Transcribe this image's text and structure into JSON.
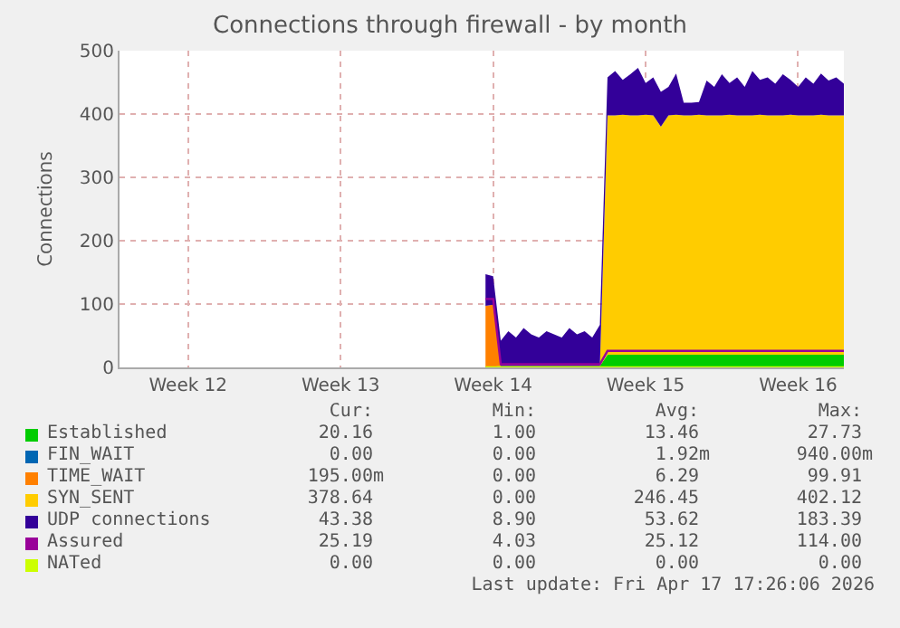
{
  "chart_data": {
    "type": "area",
    "title": "Connections through firewall - by month",
    "ylabel": "Connections",
    "categories": [
      null,
      null,
      null,
      null,
      null,
      null,
      null,
      null,
      null,
      "Week 12",
      null,
      null,
      null,
      null,
      null,
      null,
      null,
      null,
      null,
      null,
      null,
      null,
      null,
      null,
      null,
      null,
      null,
      null,
      null,
      "Week 13",
      null,
      null,
      null,
      null,
      null,
      null,
      null,
      null,
      null,
      null,
      null,
      null,
      null,
      null,
      null,
      null,
      null,
      null,
      null,
      "Week 14",
      null,
      null,
      null,
      null,
      null,
      null,
      null,
      null,
      null,
      null,
      null,
      null,
      null,
      null,
      null,
      null,
      null,
      null,
      null,
      "Week 15",
      null,
      null,
      null,
      null,
      null,
      null,
      null,
      null,
      null,
      null,
      null,
      null,
      null,
      null,
      null,
      null,
      null,
      null,
      null,
      "Week 16",
      null,
      null,
      null,
      null,
      null,
      null
    ],
    "ylim": [
      0,
      500
    ],
    "yticks": [
      0,
      100,
      200,
      300,
      400,
      500
    ],
    "stacked": true,
    "grid": true,
    "legend": "bottom",
    "series": [
      {
        "name": "Established",
        "color": "#00cc00",
        "type": "area",
        "values": [
          null,
          null,
          null,
          null,
          null,
          null,
          null,
          null,
          null,
          null,
          null,
          null,
          null,
          null,
          null,
          null,
          null,
          null,
          null,
          null,
          null,
          null,
          null,
          null,
          null,
          null,
          null,
          null,
          null,
          null,
          null,
          null,
          null,
          null,
          null,
          null,
          null,
          null,
          null,
          null,
          null,
          null,
          null,
          null,
          null,
          null,
          null,
          null,
          1,
          1,
          2,
          2,
          2,
          2,
          2,
          2,
          2,
          2,
          2,
          2,
          2,
          2,
          2,
          2,
          20,
          20,
          20,
          20,
          20,
          20,
          20,
          20,
          20,
          20,
          20,
          20,
          20,
          20,
          20,
          20,
          20,
          20,
          20,
          20,
          20,
          20,
          20,
          20,
          20,
          20,
          20,
          20,
          20,
          20,
          20,
          20
        ]
      },
      {
        "name": "FIN_WAIT",
        "color": "#0066b3",
        "type": "area",
        "values": [
          null,
          null,
          null,
          null,
          null,
          null,
          null,
          null,
          null,
          null,
          null,
          null,
          null,
          null,
          null,
          null,
          null,
          null,
          null,
          null,
          null,
          null,
          null,
          null,
          null,
          null,
          null,
          null,
          null,
          null,
          null,
          null,
          null,
          null,
          null,
          null,
          null,
          null,
          null,
          null,
          null,
          null,
          null,
          null,
          null,
          null,
          null,
          null,
          null,
          null,
          null,
          null,
          null,
          null,
          null,
          null,
          null,
          null,
          null,
          null,
          null,
          null,
          null,
          null,
          null,
          null,
          null,
          null,
          null,
          null,
          null,
          null,
          null,
          null,
          null,
          null,
          null,
          null,
          null,
          null,
          null,
          null,
          null,
          null,
          null,
          null,
          null,
          null,
          null,
          null,
          null,
          null,
          null,
          null,
          null,
          null
        ]
      },
      {
        "name": "TIME_WAIT",
        "color": "#ff8000",
        "type": "area",
        "values": [
          null,
          null,
          null,
          null,
          null,
          null,
          null,
          null,
          null,
          null,
          null,
          null,
          null,
          null,
          null,
          null,
          null,
          null,
          null,
          null,
          null,
          null,
          null,
          null,
          null,
          null,
          null,
          null,
          null,
          null,
          null,
          null,
          null,
          null,
          null,
          null,
          null,
          null,
          null,
          null,
          null,
          null,
          null,
          null,
          null,
          null,
          null,
          null,
          96,
          98,
          0,
          0,
          0,
          0,
          0,
          0,
          0,
          0,
          0,
          0,
          0,
          0,
          0,
          0,
          0,
          0,
          0,
          0,
          0,
          0,
          0,
          0,
          0,
          0,
          0,
          0,
          0,
          0,
          0,
          0,
          0,
          0,
          0,
          0,
          0,
          0,
          0,
          0,
          0,
          0,
          0,
          0,
          0,
          0,
          0,
          0
        ]
      },
      {
        "name": "SYN_SENT",
        "color": "#ffcc00",
        "type": "area",
        "values": [
          null,
          null,
          null,
          null,
          null,
          null,
          null,
          null,
          null,
          null,
          null,
          null,
          null,
          null,
          null,
          null,
          null,
          null,
          null,
          null,
          null,
          null,
          null,
          null,
          null,
          null,
          null,
          null,
          null,
          null,
          null,
          null,
          null,
          null,
          null,
          null,
          null,
          null,
          null,
          null,
          null,
          null,
          null,
          null,
          null,
          null,
          null,
          null,
          0,
          0,
          0,
          0,
          0,
          0,
          0,
          0,
          0,
          0,
          0,
          0,
          0,
          0,
          0,
          0,
          378,
          378,
          379,
          378,
          378,
          379,
          378,
          360,
          378,
          379,
          378,
          378,
          379,
          378,
          378,
          378,
          379,
          378,
          378,
          378,
          379,
          378,
          378,
          378,
          379,
          378,
          378,
          378,
          379,
          378,
          378,
          378
        ]
      },
      {
        "name": "UDP connections",
        "color": "#330099",
        "type": "area",
        "values": [
          null,
          null,
          null,
          null,
          null,
          null,
          null,
          null,
          null,
          null,
          null,
          null,
          null,
          null,
          null,
          null,
          null,
          null,
          null,
          null,
          null,
          null,
          null,
          null,
          null,
          null,
          null,
          null,
          null,
          null,
          null,
          null,
          null,
          null,
          null,
          null,
          null,
          null,
          null,
          null,
          null,
          null,
          null,
          null,
          null,
          null,
          null,
          null,
          50,
          45,
          40,
          55,
          45,
          60,
          50,
          45,
          55,
          50,
          45,
          60,
          50,
          55,
          45,
          65,
          60,
          70,
          55,
          65,
          75,
          50,
          60,
          55,
          45,
          65,
          20,
          20,
          20,
          55,
          45,
          65,
          50,
          60,
          45,
          70,
          55,
          60,
          50,
          65,
          55,
          45,
          60,
          50,
          65,
          55,
          60,
          50
        ]
      },
      {
        "name": "Assured",
        "color": "#990099",
        "type": "line",
        "values": [
          null,
          null,
          null,
          null,
          null,
          null,
          null,
          null,
          null,
          null,
          null,
          null,
          null,
          null,
          null,
          null,
          null,
          null,
          null,
          null,
          null,
          null,
          null,
          null,
          null,
          null,
          null,
          null,
          null,
          null,
          null,
          null,
          null,
          null,
          null,
          null,
          null,
          null,
          null,
          null,
          null,
          null,
          null,
          null,
          null,
          null,
          null,
          null,
          108,
          108,
          5,
          5,
          5,
          5,
          5,
          5,
          5,
          5,
          5,
          5,
          5,
          5,
          5,
          5,
          26,
          26,
          26,
          26,
          26,
          26,
          26,
          26,
          26,
          26,
          26,
          26,
          26,
          26,
          26,
          26,
          26,
          26,
          26,
          26,
          26,
          26,
          26,
          26,
          26,
          26,
          26,
          26,
          26,
          26,
          26,
          26
        ]
      },
      {
        "name": "NATed",
        "color": "#ccff00",
        "type": "line",
        "values": [
          null,
          null,
          null,
          null,
          null,
          null,
          null,
          null,
          null,
          null,
          null,
          null,
          null,
          null,
          null,
          null,
          null,
          null,
          null,
          null,
          null,
          null,
          null,
          null,
          null,
          null,
          null,
          null,
          null,
          null,
          null,
          null,
          null,
          null,
          null,
          null,
          null,
          null,
          null,
          null,
          null,
          null,
          null,
          null,
          null,
          null,
          null,
          null,
          0,
          0,
          0,
          0,
          0,
          0,
          0,
          0,
          0,
          0,
          0,
          0,
          0,
          0,
          0,
          0,
          0,
          0,
          0,
          0,
          0,
          0,
          0,
          0,
          0,
          0,
          0,
          0,
          0,
          0,
          0,
          0,
          0,
          0,
          0,
          0,
          0,
          0,
          0,
          0,
          0,
          0,
          0,
          0,
          0,
          0,
          0,
          0
        ]
      }
    ],
    "annotations": [
      "Cur:",
      "Min:",
      "Avg:",
      "Max:",
      "20.16",
      "1.00",
      "13.46",
      "27.73",
      "0.00",
      "0.00",
      "1.92m",
      "940.00m",
      "195.00m",
      "0.00",
      "6.29",
      "99.91",
      "378.64",
      "0.00",
      "246.45",
      "402.12",
      "43.38",
      "8.90",
      "53.62",
      "183.39",
      "25.19",
      "4.03",
      "25.12",
      "114.00",
      "0.00",
      "0.00",
      "0.00",
      "0.00",
      "Last update: Fri Apr 17 17:26:06 2026"
    ]
  }
}
